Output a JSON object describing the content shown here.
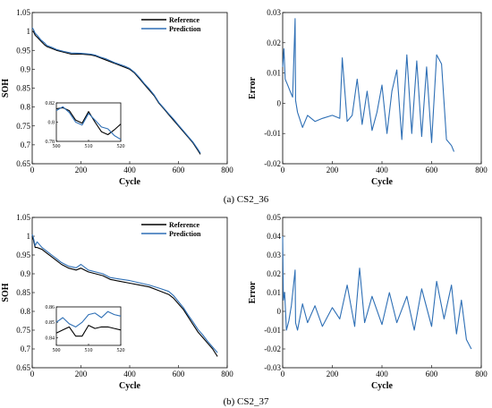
{
  "captions": {
    "a": "(a) CS2_36",
    "b": "(b) CS2_37"
  },
  "chart_data": [
    {
      "id": "a_soh",
      "type": "line",
      "xlabel": "Cycle",
      "ylabel": "SOH",
      "xlim": [
        0,
        800
      ],
      "ylim": [
        0.65,
        1.05
      ],
      "xticks": [
        "0",
        "200",
        "400",
        "600",
        "800"
      ],
      "yticks": [
        "0.65",
        "0.7",
        "0.75",
        "0.8",
        "0.85",
        "0.9",
        "0.95",
        "1",
        "1.05"
      ],
      "legend": "top-right",
      "series": [
        {
          "name": "Reference",
          "color": "#000000",
          "x": [
            0,
            5,
            12,
            20,
            35,
            50,
            60,
            80,
            100,
            130,
            160,
            200,
            240,
            260,
            280,
            300,
            340,
            380,
            400,
            420,
            440,
            460,
            480,
            500,
            520,
            540,
            560,
            580,
            600,
            620,
            640,
            660,
            680,
            690
          ],
          "y": [
            1.0,
            1.0,
            0.99,
            0.985,
            0.975,
            0.965,
            0.96,
            0.955,
            0.95,
            0.945,
            0.94,
            0.94,
            0.938,
            0.935,
            0.93,
            0.925,
            0.915,
            0.905,
            0.9,
            0.89,
            0.875,
            0.86,
            0.845,
            0.83,
            0.81,
            0.795,
            0.78,
            0.765,
            0.75,
            0.735,
            0.72,
            0.705,
            0.685,
            0.675
          ]
        },
        {
          "name": "Prediction",
          "color": "#2e6fb5",
          "x": [
            0,
            5,
            12,
            20,
            35,
            50,
            60,
            80,
            100,
            130,
            160,
            200,
            240,
            260,
            280,
            300,
            340,
            380,
            400,
            420,
            440,
            460,
            480,
            500,
            520,
            540,
            560,
            580,
            600,
            620,
            640,
            660,
            680,
            690
          ],
          "y": [
            1.01,
            1.005,
            0.995,
            0.99,
            0.978,
            0.97,
            0.963,
            0.958,
            0.952,
            0.947,
            0.943,
            0.942,
            0.94,
            0.937,
            0.932,
            0.928,
            0.917,
            0.908,
            0.902,
            0.892,
            0.878,
            0.862,
            0.848,
            0.832,
            0.812,
            0.797,
            0.782,
            0.768,
            0.752,
            0.737,
            0.722,
            0.707,
            0.688,
            0.678
          ]
        }
      ],
      "inset": {
        "xlim": [
          500,
          520
        ],
        "ylim": [
          0.78,
          0.82
        ],
        "xticks": [
          "500",
          "510",
          "520"
        ],
        "yticks": [
          "0.78",
          "0.8",
          "0.82"
        ],
        "series": [
          {
            "name": "Reference",
            "x": [
              500,
              502,
              504,
              506,
              508,
              510,
              512,
              514,
              516,
              518,
              520
            ],
            "y": [
              0.814,
              0.815,
              0.812,
              0.802,
              0.799,
              0.811,
              0.8,
              0.79,
              0.787,
              0.792,
              0.798
            ]
          },
          {
            "name": "Prediction",
            "x": [
              500,
              502,
              504,
              506,
              508,
              510,
              512,
              514,
              516,
              518,
              520
            ],
            "y": [
              0.812,
              0.816,
              0.81,
              0.8,
              0.797,
              0.809,
              0.802,
              0.795,
              0.793,
              0.786,
              0.782
            ]
          }
        ]
      }
    },
    {
      "id": "a_err",
      "type": "line",
      "xlabel": "Cycle",
      "ylabel": "Error",
      "xlim": [
        0,
        800
      ],
      "ylim": [
        -0.02,
        0.03
      ],
      "xticks": [
        "0",
        "200",
        "400",
        "600",
        "800"
      ],
      "yticks": [
        "-0.02",
        "-0.01",
        "0",
        "0.01",
        "0.02",
        "0.03"
      ],
      "series": [
        {
          "name": "",
          "color": "#2e6fb5",
          "x": [
            0,
            5,
            10,
            20,
            30,
            40,
            50,
            52,
            60,
            80,
            100,
            130,
            160,
            200,
            230,
            240,
            260,
            280,
            300,
            320,
            340,
            360,
            380,
            400,
            420,
            440,
            460,
            480,
            500,
            520,
            540,
            560,
            580,
            600,
            620,
            640,
            660,
            680,
            690
          ],
          "y": [
            0.012,
            0.018,
            0.008,
            0.006,
            0.004,
            0.002,
            0.028,
            0.001,
            -0.003,
            -0.008,
            -0.004,
            -0.006,
            -0.005,
            -0.004,
            -0.005,
            0.015,
            -0.006,
            -0.004,
            0.008,
            -0.007,
            0.004,
            -0.009,
            -0.003,
            0.006,
            -0.01,
            0.004,
            0.011,
            -0.012,
            0.016,
            -0.01,
            0.014,
            -0.011,
            0.012,
            -0.013,
            0.016,
            0.013,
            -0.012,
            -0.014,
            -0.016
          ]
        }
      ]
    },
    {
      "id": "b_soh",
      "type": "line",
      "xlabel": "Cycle",
      "ylabel": "SOH",
      "xlim": [
        0,
        800
      ],
      "ylim": [
        0.65,
        1.05
      ],
      "xticks": [
        "0",
        "200",
        "400",
        "600",
        "800"
      ],
      "yticks": [
        "0.65",
        "0.7",
        "0.75",
        "0.8",
        "0.85",
        "0.9",
        "0.95",
        "1",
        "1.05"
      ],
      "legend": "top-right",
      "series": [
        {
          "name": "Reference",
          "color": "#000000",
          "x": [
            0,
            5,
            12,
            20,
            40,
            60,
            80,
            100,
            120,
            150,
            180,
            200,
            230,
            260,
            290,
            320,
            360,
            400,
            440,
            480,
            520,
            560,
            580,
            600,
            620,
            640,
            660,
            680,
            700,
            720,
            740,
            760
          ],
          "y": [
            1.0,
            0.99,
            0.97,
            0.97,
            0.965,
            0.955,
            0.945,
            0.935,
            0.925,
            0.915,
            0.91,
            0.915,
            0.905,
            0.9,
            0.895,
            0.885,
            0.88,
            0.875,
            0.87,
            0.865,
            0.855,
            0.845,
            0.835,
            0.82,
            0.805,
            0.785,
            0.765,
            0.745,
            0.73,
            0.715,
            0.7,
            0.68
          ]
        },
        {
          "name": "Prediction",
          "color": "#2e6fb5",
          "x": [
            0,
            5,
            12,
            20,
            40,
            60,
            80,
            100,
            120,
            150,
            180,
            200,
            230,
            260,
            290,
            320,
            360,
            400,
            440,
            480,
            520,
            560,
            580,
            600,
            620,
            640,
            660,
            680,
            700,
            720,
            740,
            760
          ],
          "y": [
            1.005,
            0.995,
            0.975,
            0.985,
            0.97,
            0.96,
            0.95,
            0.94,
            0.93,
            0.92,
            0.916,
            0.925,
            0.91,
            0.905,
            0.9,
            0.89,
            0.886,
            0.882,
            0.876,
            0.87,
            0.862,
            0.853,
            0.842,
            0.826,
            0.81,
            0.79,
            0.772,
            0.752,
            0.737,
            0.72,
            0.705,
            0.69
          ]
        }
      ],
      "inset": {
        "xlim": [
          500,
          520
        ],
        "ylim": [
          0.835,
          0.86
        ],
        "xticks": [
          "500",
          "510",
          "520"
        ],
        "yticks": [
          "0.84",
          "0.85",
          "0.86"
        ],
        "series": [
          {
            "name": "Reference",
            "x": [
              500,
              502,
              504,
              506,
              508,
              510,
              512,
              514,
              516,
              518,
              520
            ],
            "y": [
              0.843,
              0.845,
              0.847,
              0.841,
              0.841,
              0.848,
              0.846,
              0.847,
              0.847,
              0.846,
              0.845
            ]
          },
          {
            "name": "Prediction",
            "x": [
              500,
              502,
              504,
              506,
              508,
              510,
              512,
              514,
              516,
              518,
              520
            ],
            "y": [
              0.85,
              0.853,
              0.849,
              0.847,
              0.85,
              0.855,
              0.856,
              0.853,
              0.857,
              0.855,
              0.854
            ]
          }
        ]
      }
    },
    {
      "id": "b_err",
      "type": "line",
      "xlabel": "Cycle",
      "ylabel": "Error",
      "xlim": [
        0,
        800
      ],
      "ylim": [
        -0.03,
        0.05
      ],
      "xticks": [
        "0",
        "200",
        "400",
        "600",
        "800"
      ],
      "yticks": [
        "-0.03",
        "-0.02",
        "-0.01",
        "0",
        "0.01",
        "0.02",
        "0.03",
        "0.04",
        "0.05"
      ],
      "series": [
        {
          "name": "",
          "color": "#2e6fb5",
          "x": [
            0,
            3,
            8,
            15,
            25,
            35,
            50,
            52,
            60,
            80,
            100,
            130,
            160,
            200,
            230,
            260,
            290,
            310,
            330,
            360,
            400,
            430,
            460,
            500,
            530,
            560,
            600,
            620,
            650,
            680,
            700,
            720,
            740,
            760
          ],
          "y": [
            0.04,
            0.006,
            0.01,
            -0.01,
            -0.005,
            0.003,
            0.022,
            -0.006,
            -0.01,
            0.004,
            -0.006,
            0.003,
            -0.008,
            0.002,
            -0.004,
            0.014,
            -0.008,
            0.023,
            -0.006,
            0.008,
            -0.007,
            0.01,
            -0.006,
            0.008,
            -0.01,
            0.012,
            -0.008,
            0.016,
            -0.004,
            0.014,
            -0.012,
            0.006,
            -0.015,
            -0.02
          ]
        }
      ]
    }
  ]
}
